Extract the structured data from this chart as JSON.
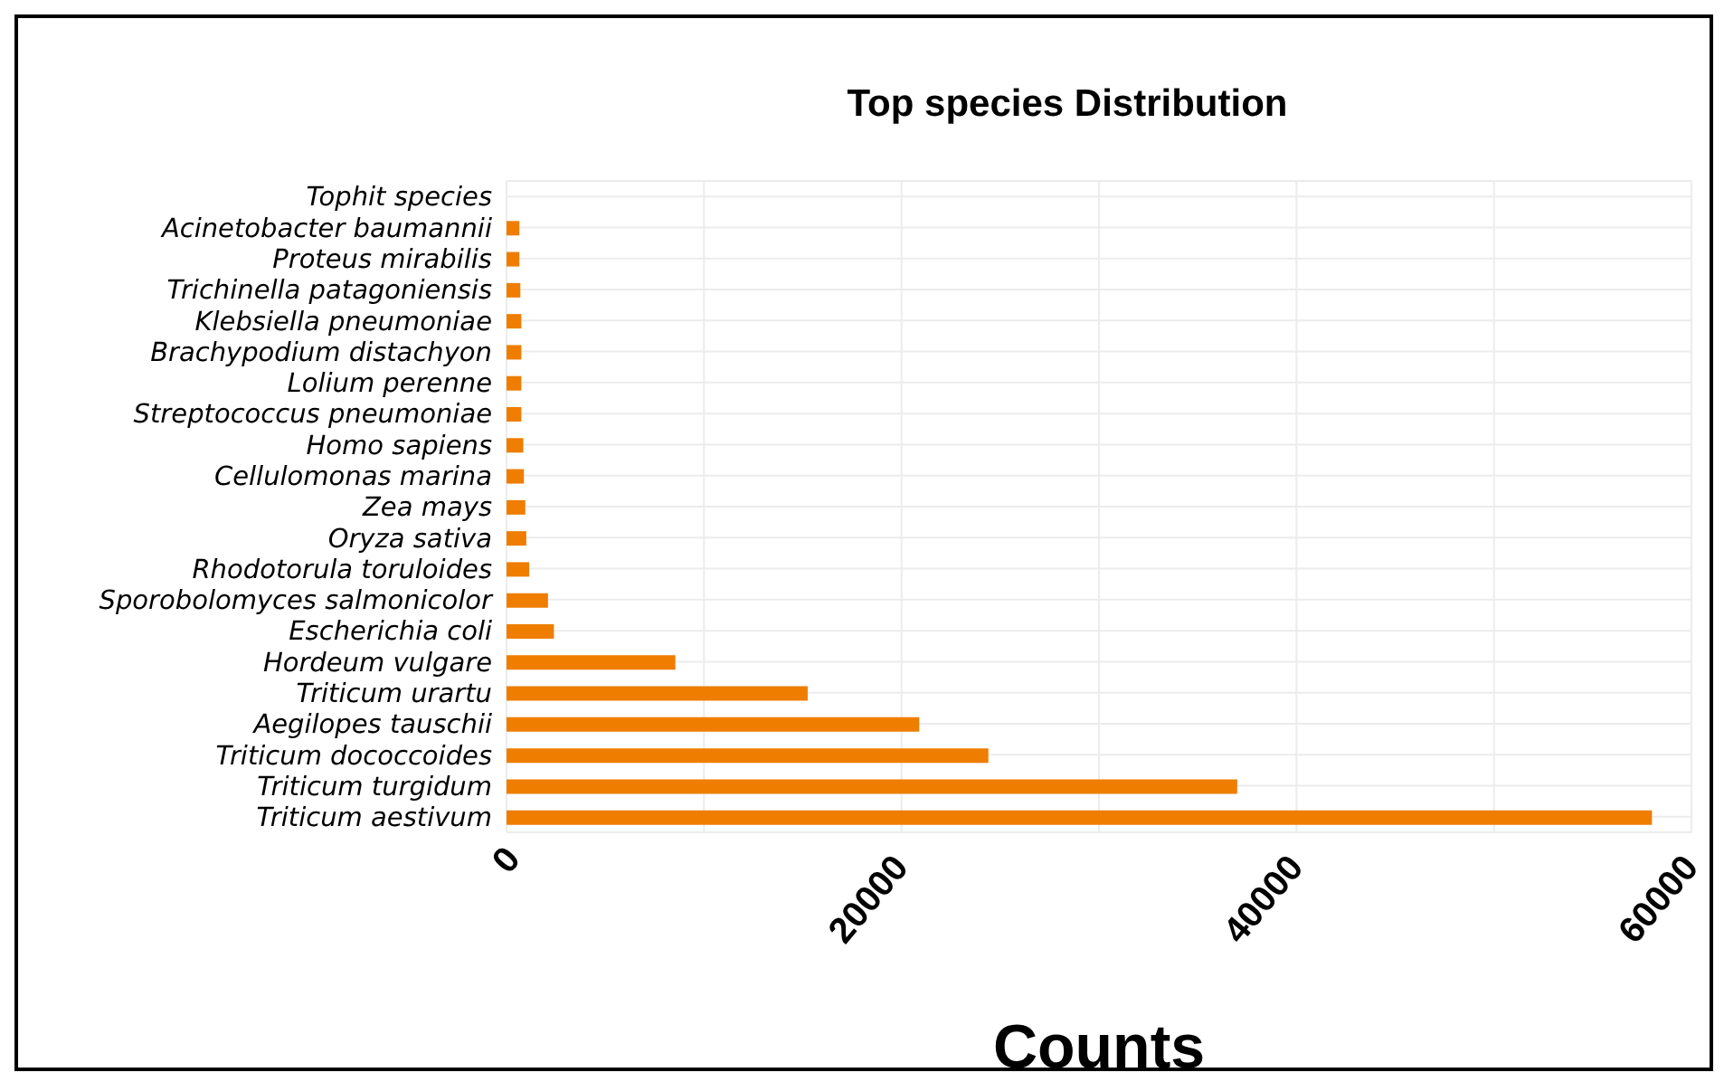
{
  "chart_data": {
    "type": "bar",
    "orientation": "horizontal",
    "title": "Top species Distribution",
    "xlabel": "Counts",
    "categories": [
      "Tophit species",
      "Acinetobacter baumannii",
      "Proteus mirabilis",
      "Trichinella patagoniensis",
      "Klebsiella pneumoniae",
      "Brachypodium distachyon",
      "Lolium perenne",
      "Streptococcus pneumoniae",
      "Homo sapiens",
      "Cellulomonas marina",
      "Zea mays",
      "Oryza sativa",
      "Rhodotorula toruloides",
      "Sporobolomyces salmonicolor",
      "Escherichia coli",
      "Hordeum vulgare",
      "Triticum urartu",
      "Aegilopes tauschii",
      "Triticum dococcoides",
      "Triticum turgidum",
      "Triticum aestivum"
    ],
    "values": [
      0,
      650,
      650,
      700,
      750,
      750,
      750,
      750,
      850,
      880,
      950,
      1000,
      1150,
      2100,
      2400,
      8550,
      15250,
      20900,
      24400,
      37000,
      58000
    ],
    "color": "#ef7d00",
    "xlim": [
      0,
      60000
    ],
    "xticks": [
      0,
      {
        "value": 10000,
        "label": null
      },
      20000,
      {
        "value": 30000,
        "label": null
      },
      40000,
      {
        "value": 50000,
        "label": null
      },
      60000
    ],
    "grid": true
  }
}
